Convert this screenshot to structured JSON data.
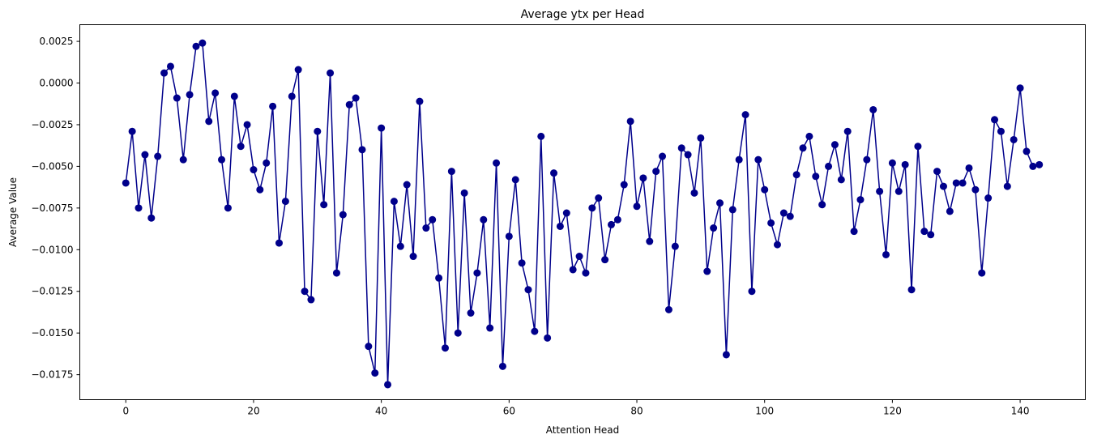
{
  "chart_data": {
    "type": "line",
    "title": "Average ytx per Head",
    "xlabel": "Attention Head",
    "ylabel": "Average Value",
    "xlim": [
      -7.2,
      150.2
    ],
    "ylim": [
      -0.019,
      0.0035
    ],
    "xticks": [
      0,
      20,
      40,
      60,
      80,
      100,
      120,
      140
    ],
    "xtick_labels": [
      "0",
      "20",
      "40",
      "60",
      "80",
      "100",
      "120",
      "140"
    ],
    "yticks": [
      0.0025,
      0.0,
      -0.0025,
      -0.005,
      -0.0075,
      -0.01,
      -0.0125,
      -0.015,
      -0.0175
    ],
    "ytick_labels": [
      "0.0025",
      "0.0000",
      "−0.0025",
      "−0.0050",
      "−0.0075",
      "−0.0100",
      "−0.0125",
      "−0.0150",
      "−0.0175"
    ],
    "grid": false,
    "color": "#00008B",
    "marker": "circle",
    "series": [
      {
        "x": [
          0,
          1,
          2,
          3,
          4,
          5,
          6,
          7,
          8,
          9,
          10,
          11,
          12,
          13,
          14,
          15,
          16,
          17,
          18,
          19,
          20,
          21,
          22,
          23,
          24,
          25,
          26,
          27,
          28,
          29,
          30,
          31,
          32,
          33,
          34,
          35,
          36,
          37,
          38,
          39,
          40,
          41,
          42,
          43,
          44,
          45,
          46,
          47,
          48,
          49,
          50,
          51,
          52,
          53,
          54,
          55,
          56,
          57,
          58,
          59,
          60,
          61,
          62,
          63,
          64,
          65,
          66,
          67,
          68,
          69,
          70,
          71,
          72,
          73,
          74,
          75,
          76,
          77,
          78,
          79,
          80,
          81,
          82,
          83,
          84,
          85,
          86,
          87,
          88,
          89,
          90,
          91,
          92,
          93,
          94,
          95,
          96,
          97,
          98,
          99,
          100,
          101,
          102,
          103,
          104,
          105,
          106,
          107,
          108,
          109,
          110,
          111,
          112,
          113,
          114,
          115,
          116,
          117,
          118,
          119,
          120,
          121,
          122,
          123,
          124,
          125,
          126,
          127,
          128,
          129,
          130,
          131,
          132,
          133,
          134,
          135,
          136,
          137,
          138,
          139,
          140,
          141,
          142,
          143
        ],
        "values": [
          -0.006,
          -0.0029,
          -0.0075,
          -0.0043,
          -0.0081,
          -0.0044,
          0.0006,
          0.001,
          -0.0009,
          -0.0046,
          -0.0007,
          0.0022,
          0.0024,
          -0.0023,
          -0.0006,
          -0.0046,
          -0.0075,
          -0.0008,
          -0.0038,
          -0.0025,
          -0.0052,
          -0.0064,
          -0.0048,
          -0.0014,
          -0.0096,
          -0.0071,
          -0.0008,
          0.0008,
          -0.0125,
          -0.013,
          -0.0029,
          -0.0073,
          0.0006,
          -0.0114,
          -0.0079,
          -0.0013,
          -0.0009,
          -0.004,
          -0.0158,
          -0.0174,
          -0.0027,
          -0.0181,
          -0.0071,
          -0.0098,
          -0.0061,
          -0.0104,
          -0.0011,
          -0.0087,
          -0.0082,
          -0.0117,
          -0.0159,
          -0.0053,
          -0.015,
          -0.0066,
          -0.0138,
          -0.0114,
          -0.0082,
          -0.0147,
          -0.0048,
          -0.017,
          -0.0092,
          -0.0058,
          -0.0108,
          -0.0124,
          -0.0149,
          -0.0032,
          -0.0153,
          -0.0054,
          -0.0086,
          -0.0078,
          -0.0112,
          -0.0104,
          -0.0114,
          -0.0075,
          -0.0069,
          -0.0106,
          -0.0085,
          -0.0082,
          -0.0061,
          -0.0023,
          -0.0074,
          -0.0057,
          -0.0095,
          -0.0053,
          -0.0044,
          -0.0136,
          -0.0098,
          -0.0039,
          -0.0043,
          -0.0066,
          -0.0033,
          -0.0113,
          -0.0087,
          -0.0072,
          -0.0163,
          -0.0076,
          -0.0046,
          -0.0019,
          -0.0125,
          -0.0046,
          -0.0064,
          -0.0084,
          -0.0097,
          -0.0078,
          -0.008,
          -0.0055,
          -0.0039,
          -0.0032,
          -0.0056,
          -0.0073,
          -0.005,
          -0.0037,
          -0.0058,
          -0.0029,
          -0.0089,
          -0.007,
          -0.0046,
          -0.0016,
          -0.0065,
          -0.0103,
          -0.0048,
          -0.0065,
          -0.0049,
          -0.0124,
          -0.0038,
          -0.0089,
          -0.0091,
          -0.0053,
          -0.0062,
          -0.0077,
          -0.006,
          -0.006,
          -0.0051,
          -0.0064,
          -0.0114,
          -0.0069,
          -0.0022,
          -0.0029,
          -0.0062,
          -0.0034,
          -0.0003,
          -0.0041,
          -0.005,
          -0.0049
        ]
      }
    ]
  }
}
